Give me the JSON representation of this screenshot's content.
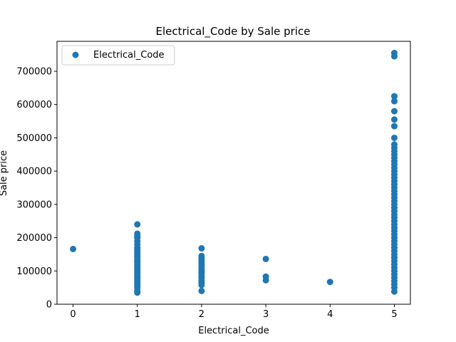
{
  "chart_data": {
    "type": "scatter",
    "title": "Electrical_Code by Sale price",
    "xlabel": "Electrical_Code",
    "ylabel": "Sale price",
    "xlim": [
      -0.25,
      5.25
    ],
    "ylim": [
      0,
      790000
    ],
    "xticks": [
      0,
      1,
      2,
      3,
      4,
      5
    ],
    "yticks": [
      0,
      100000,
      200000,
      300000,
      400000,
      500000,
      600000,
      700000
    ],
    "grid": false,
    "legend_position": "top-left",
    "series": [
      {
        "name": "Electrical_Code",
        "color": "#1f77b4",
        "points": [
          [
            0,
            166000
          ],
          [
            1,
            35000
          ],
          [
            1,
            40000
          ],
          [
            1,
            50000
          ],
          [
            1,
            55000
          ],
          [
            1,
            60000
          ],
          [
            1,
            65000
          ],
          [
            1,
            70000
          ],
          [
            1,
            75000
          ],
          [
            1,
            80000
          ],
          [
            1,
            85000
          ],
          [
            1,
            90000
          ],
          [
            1,
            95000
          ],
          [
            1,
            100000
          ],
          [
            1,
            105000
          ],
          [
            1,
            110000
          ],
          [
            1,
            115000
          ],
          [
            1,
            120000
          ],
          [
            1,
            125000
          ],
          [
            1,
            130000
          ],
          [
            1,
            135000
          ],
          [
            1,
            140000
          ],
          [
            1,
            145000
          ],
          [
            1,
            150000
          ],
          [
            1,
            155000
          ],
          [
            1,
            160000
          ],
          [
            1,
            165000
          ],
          [
            1,
            170000
          ],
          [
            1,
            180000
          ],
          [
            1,
            190000
          ],
          [
            1,
            200000
          ],
          [
            1,
            205000
          ],
          [
            1,
            212000
          ],
          [
            1,
            240000
          ],
          [
            2,
            40000
          ],
          [
            2,
            58000
          ],
          [
            2,
            65000
          ],
          [
            2,
            72000
          ],
          [
            2,
            80000
          ],
          [
            2,
            88000
          ],
          [
            2,
            95000
          ],
          [
            2,
            100000
          ],
          [
            2,
            105000
          ],
          [
            2,
            112000
          ],
          [
            2,
            118000
          ],
          [
            2,
            125000
          ],
          [
            2,
            132000
          ],
          [
            2,
            138000
          ],
          [
            2,
            145000
          ],
          [
            2,
            168000
          ],
          [
            3,
            72000
          ],
          [
            3,
            83000
          ],
          [
            3,
            136000
          ],
          [
            4,
            67000
          ],
          [
            5,
            38000
          ],
          [
            5,
            50000
          ],
          [
            5,
            60000
          ],
          [
            5,
            70000
          ],
          [
            5,
            80000
          ],
          [
            5,
            90000
          ],
          [
            5,
            100000
          ],
          [
            5,
            110000
          ],
          [
            5,
            120000
          ],
          [
            5,
            130000
          ],
          [
            5,
            140000
          ],
          [
            5,
            150000
          ],
          [
            5,
            160000
          ],
          [
            5,
            170000
          ],
          [
            5,
            180000
          ],
          [
            5,
            190000
          ],
          [
            5,
            200000
          ],
          [
            5,
            210000
          ],
          [
            5,
            220000
          ],
          [
            5,
            230000
          ],
          [
            5,
            240000
          ],
          [
            5,
            250000
          ],
          [
            5,
            260000
          ],
          [
            5,
            270000
          ],
          [
            5,
            280000
          ],
          [
            5,
            290000
          ],
          [
            5,
            300000
          ],
          [
            5,
            310000
          ],
          [
            5,
            320000
          ],
          [
            5,
            330000
          ],
          [
            5,
            340000
          ],
          [
            5,
            350000
          ],
          [
            5,
            360000
          ],
          [
            5,
            370000
          ],
          [
            5,
            380000
          ],
          [
            5,
            390000
          ],
          [
            5,
            400000
          ],
          [
            5,
            410000
          ],
          [
            5,
            420000
          ],
          [
            5,
            430000
          ],
          [
            5,
            440000
          ],
          [
            5,
            450000
          ],
          [
            5,
            460000
          ],
          [
            5,
            470000
          ],
          [
            5,
            480000
          ],
          [
            5,
            500000
          ],
          [
            5,
            535000
          ],
          [
            5,
            555000
          ],
          [
            5,
            580000
          ],
          [
            5,
            610000
          ],
          [
            5,
            625000
          ],
          [
            5,
            745000
          ],
          [
            5,
            755000
          ]
        ]
      }
    ]
  }
}
